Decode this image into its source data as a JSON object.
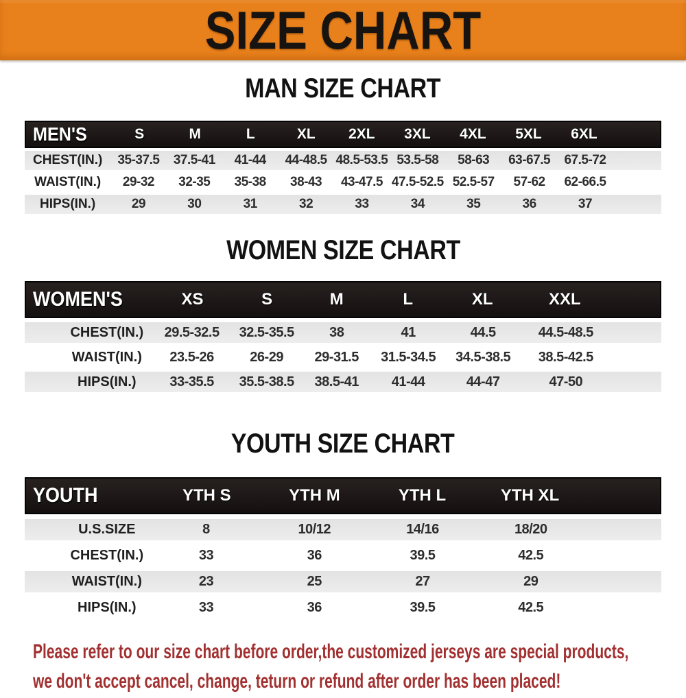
{
  "banner": {
    "title": "SIZE CHART"
  },
  "sections": {
    "men": {
      "heading": "MAN SIZE CHART",
      "table_label": "MEN'S",
      "columns": [
        "S",
        "M",
        "L",
        "XL",
        "2XL",
        "3XL",
        "4XL",
        "5XL",
        "6XL"
      ],
      "rows": [
        {
          "label": "CHEST(IN.)",
          "values": [
            "35-37.5",
            "37.5-41",
            "41-44",
            "44-48.5",
            "48.5-53.5",
            "53.5-58",
            "58-63",
            "63-67.5",
            "67.5-72"
          ]
        },
        {
          "label": "WAIST(IN.)",
          "values": [
            "29-32",
            "32-35",
            "35-38",
            "38-43",
            "43-47.5",
            "47.5-52.5",
            "52.5-57",
            "57-62",
            "62-66.5"
          ]
        },
        {
          "label": "HIPS(IN.)",
          "values": [
            "29",
            "30",
            "31",
            "32",
            "33",
            "34",
            "35",
            "36",
            "37"
          ]
        }
      ]
    },
    "women": {
      "heading": "WOMEN SIZE CHART",
      "table_label": "WOMEN'S",
      "columns": [
        "XS",
        "S",
        "M",
        "L",
        "XL",
        "XXL"
      ],
      "rows": [
        {
          "label": "CHEST(IN.)",
          "values": [
            "29.5-32.5",
            "32.5-35.5",
            "38",
            "41",
            "44.5",
            "44.5-48.5"
          ]
        },
        {
          "label": "WAIST(IN.)",
          "values": [
            "23.5-26",
            "26-29",
            "29-31.5",
            "31.5-34.5",
            "34.5-38.5",
            "38.5-42.5"
          ]
        },
        {
          "label": "HIPS(IN.)",
          "values": [
            "33-35.5",
            "35.5-38.5",
            "38.5-41",
            "41-44",
            "44-47",
            "47-50"
          ]
        }
      ]
    },
    "youth": {
      "heading": "YOUTH SIZE CHART",
      "table_label": "YOUTH",
      "columns": [
        "YTH S",
        "YTH M",
        "YTH L",
        "YTH XL"
      ],
      "rows": [
        {
          "label": "U.S.SIZE",
          "values": [
            "8",
            "10/12",
            "14/16",
            "18/20"
          ]
        },
        {
          "label": "CHEST(IN.)",
          "values": [
            "33",
            "36",
            "39.5",
            "42.5"
          ]
        },
        {
          "label": "WAIST(IN.)",
          "values": [
            "23",
            "25",
            "27",
            "29"
          ]
        },
        {
          "label": "HIPS(IN.)",
          "values": [
            "33",
            "36",
            "39.5",
            "42.5"
          ]
        }
      ]
    }
  },
  "disclaimer": {
    "line1": "Please refer to our size chart before order,the customized jerseys are special products,",
    "line2": "we don't accept cancel, change, teturn or refund after order has been placed!"
  },
  "theme": {
    "banner_bg": "#E8811B",
    "banner_text": "#171310",
    "header_bar_bg": "#1B1614",
    "header_bar_text": "#FFFFFF",
    "row_stripe": "#E8E8E8",
    "row_white": "#FFFFFF",
    "body_text": "#2D2D2D",
    "disclaimer_text": "#A23030"
  }
}
